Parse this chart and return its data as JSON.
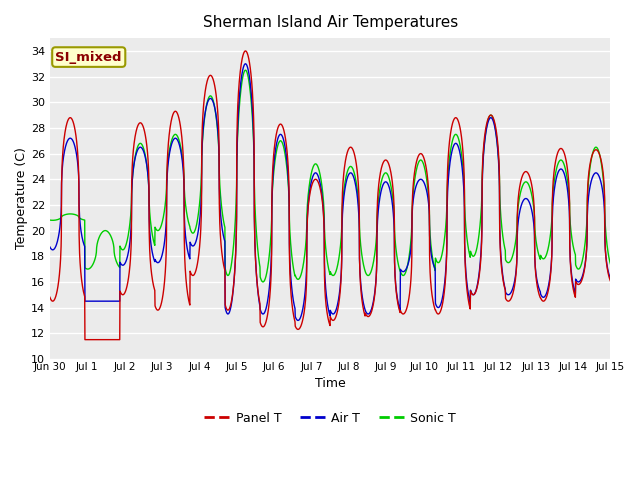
{
  "title": "Sherman Island Air Temperatures",
  "xlabel": "Time",
  "ylabel": "Temperature (C)",
  "annotation": "SI_mixed",
  "ylim": [
    10,
    35
  ],
  "yticks": [
    10,
    12,
    14,
    16,
    18,
    20,
    22,
    24,
    26,
    28,
    30,
    32,
    34
  ],
  "bg_color": "#ebebeb",
  "line_colors": {
    "panel": "#cc0000",
    "air": "#0000cc",
    "sonic": "#00cc00"
  },
  "legend_labels": [
    "Panel T",
    "Air T",
    "Sonic T"
  ],
  "x_tick_labels": [
    "Jun 30",
    "Jul 1",
    "Jul 2",
    "Jul 3",
    "Jul 4",
    "Jul 5",
    "Jul 6",
    "Jul 7",
    "Jul 8",
    "Jul 9",
    "Jul 10",
    "Jul 11",
    "Jul 12",
    "Jul 13",
    "Jul 14",
    "Jul 15"
  ],
  "n_days": 16,
  "pts_per_day": 144,
  "panel_peaks": [
    28.8,
    11.5,
    28.4,
    29.3,
    32.1,
    34.0,
    28.3,
    24.0,
    26.5,
    25.5,
    26.0,
    28.8,
    29.0,
    24.6,
    26.4,
    26.3
  ],
  "panel_mins": [
    14.5,
    11.5,
    15.0,
    13.8,
    16.5,
    13.8,
    12.5,
    12.3,
    13.0,
    13.3,
    13.5,
    13.5,
    15.0,
    14.5,
    14.5,
    15.8
  ],
  "air_peaks": [
    27.2,
    14.5,
    26.5,
    27.2,
    30.3,
    33.0,
    27.5,
    24.5,
    24.5,
    23.8,
    24.0,
    26.8,
    28.8,
    22.5,
    24.8,
    24.5
  ],
  "air_mins": [
    18.5,
    14.5,
    17.3,
    17.5,
    18.8,
    13.5,
    13.5,
    13.0,
    13.5,
    13.5,
    16.8,
    14.0,
    15.0,
    15.0,
    14.8,
    16.0
  ],
  "sonic_peaks": [
    21.3,
    20.0,
    26.8,
    27.5,
    30.5,
    32.5,
    27.0,
    25.2,
    25.0,
    24.5,
    25.5,
    27.5,
    29.0,
    23.8,
    25.5,
    26.5
  ],
  "sonic_mins": [
    20.8,
    17.0,
    18.5,
    20.0,
    19.8,
    16.5,
    16.0,
    16.2,
    16.5,
    16.5,
    16.5,
    17.5,
    18.0,
    17.5,
    17.8,
    17.0
  ],
  "peak_phase": 0.58,
  "panel_sharpness": 3.0,
  "air_sharpness": 2.5,
  "sonic_sharpness": 1.8
}
